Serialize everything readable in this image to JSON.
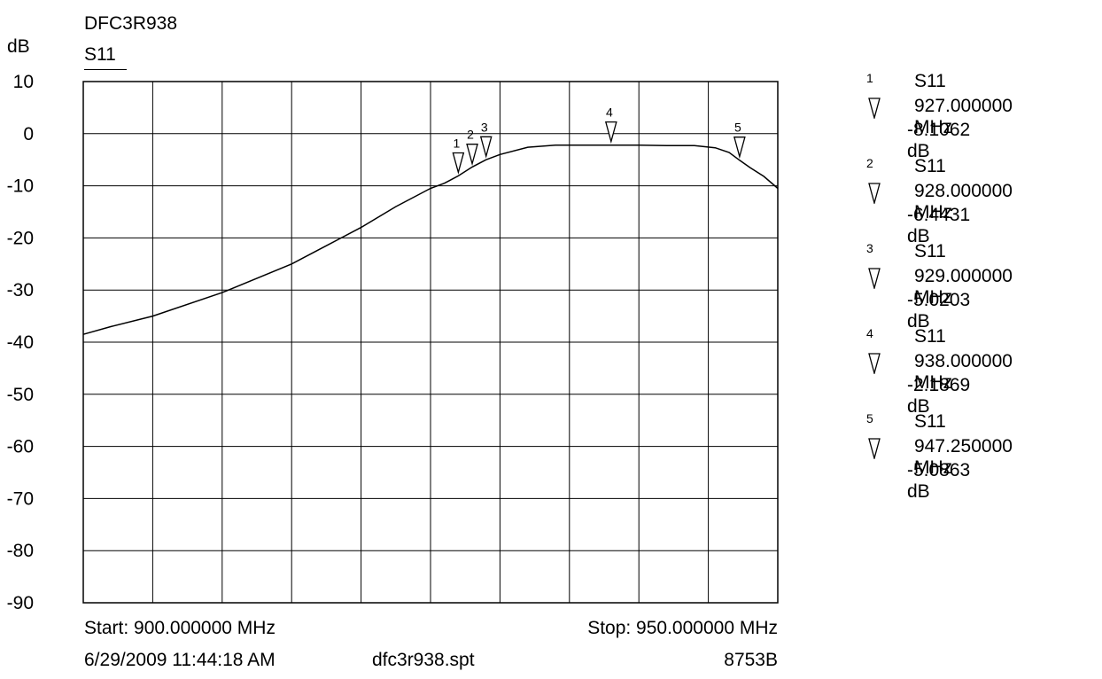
{
  "header": {
    "title": "DFC3R938",
    "unit": "dB",
    "trace": "S11"
  },
  "footer": {
    "start": "Start: 900.000000 MHz",
    "stop": "Stop: 950.000000 MHz",
    "datetime": "6/29/2009 11:44:18 AM",
    "file": "dfc3r938.spt",
    "instrument": "8753B"
  },
  "markers": [
    {
      "num": "1",
      "name": "S11",
      "freq": "927.000000 MHz",
      "value": "-8.1062 dB"
    },
    {
      "num": "2",
      "name": "S11",
      "freq": "928.000000 MHz",
      "value": "-6.4431 dB"
    },
    {
      "num": "3",
      "name": "S11",
      "freq": "929.000000 MHz",
      "value": "-5.0203 dB"
    },
    {
      "num": "4",
      "name": "S11",
      "freq": "938.000000 MHz",
      "value": "-2.1869 dB"
    },
    {
      "num": "5",
      "name": "S11",
      "freq": "947.250000 MHz",
      "value": "-5.0863 dB"
    }
  ],
  "chart_data": {
    "type": "line",
    "title": "DFC3R938",
    "ylabel": "dB",
    "xlim": [
      900,
      950
    ],
    "ylim": [
      -90,
      10
    ],
    "grid": true,
    "yticks": [
      "10",
      "0",
      "-10",
      "-20",
      "-30",
      "-40",
      "-50",
      "-60",
      "-70",
      "-80",
      "-90"
    ],
    "series": [
      {
        "name": "S11",
        "x": [
          900,
          902,
          905,
          910,
          915,
          917.5,
          920,
          922.5,
          925,
          926,
          927,
          928,
          929,
          930,
          932,
          934,
          936,
          938,
          940,
          942,
          944,
          945.5,
          946.5,
          947.25,
          948,
          949,
          950
        ],
        "y": [
          -38.5,
          -37,
          -35,
          -30.5,
          -25,
          -21.5,
          -18,
          -14,
          -10.5,
          -9.5,
          -8.1,
          -6.4,
          -5,
          -4,
          -2.6,
          -2.2,
          -2.2,
          -2.2,
          -2.2,
          -2.3,
          -2.3,
          -2.7,
          -3.6,
          -5.1,
          -6.5,
          -8.2,
          -10.5
        ]
      }
    ],
    "markers": [
      {
        "x": 927,
        "y": -8.1062
      },
      {
        "x": 928,
        "y": -6.4431
      },
      {
        "x": 929,
        "y": -5.0203
      },
      {
        "x": 938,
        "y": -2.1869
      },
      {
        "x": 947.25,
        "y": -5.0863
      }
    ]
  }
}
